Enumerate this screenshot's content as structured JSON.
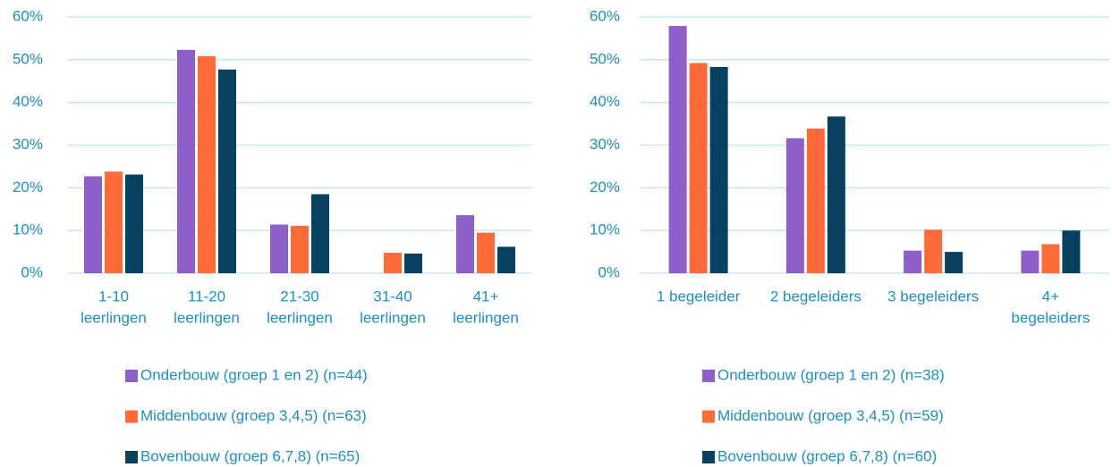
{
  "chart_data": [
    {
      "type": "bar",
      "categories": [
        [
          "1-10",
          "leerlingen"
        ],
        [
          "11-20",
          "leerlingen"
        ],
        [
          "21-30",
          "leerlingen"
        ],
        [
          "31-40",
          "leerlingen"
        ],
        [
          "41+",
          "leerlingen"
        ]
      ],
      "series": [
        {
          "name": "Onderbouw (groep 1 en 2) (n=44)",
          "color": "#8e5fc9",
          "values": [
            22.7,
            52.3,
            11.4,
            0,
            13.6
          ]
        },
        {
          "name": "Middenbouw (groep 3,4,5) (n=63)",
          "color": "#ff6b38",
          "values": [
            23.8,
            50.8,
            11.1,
            4.8,
            9.5
          ]
        },
        {
          "name": "Bovenbouw (groep 6,7,8) (n=65)",
          "color": "#08405f",
          "values": [
            23.1,
            47.7,
            18.5,
            4.6,
            6.2
          ]
        }
      ],
      "ylim": [
        0,
        60
      ],
      "yticks": [
        {
          "value": 0,
          "label": "0%"
        },
        {
          "value": 10,
          "label": "10%"
        },
        {
          "value": 20,
          "label": "20%"
        },
        {
          "value": 30,
          "label": "30%"
        },
        {
          "value": 40,
          "label": "40%"
        },
        {
          "value": 50,
          "label": "50%"
        },
        {
          "value": 60,
          "label": "60%"
        }
      ],
      "grid": true,
      "legend": "bottom"
    },
    {
      "type": "bar",
      "categories": [
        [
          "1 begeleider"
        ],
        [
          "2 begeleiders"
        ],
        [
          "3 begeleiders"
        ],
        [
          "4+",
          "begeleiders"
        ]
      ],
      "series": [
        {
          "name": "Onderbouw (groep 1 en 2) (n=38)",
          "color": "#8e5fc9",
          "values": [
            57.9,
            31.6,
            5.3,
            5.3
          ]
        },
        {
          "name": "Middenbouw (groep 3,4,5) (n=59)",
          "color": "#ff6b38",
          "values": [
            49.2,
            33.9,
            10.2,
            6.8
          ]
        },
        {
          "name": "Bovenbouw (groep 6,7,8) (n=60)",
          "color": "#08405f",
          "values": [
            48.3,
            36.7,
            5.0,
            10.0
          ]
        }
      ],
      "ylim": [
        0,
        60
      ],
      "yticks": [
        {
          "value": 0,
          "label": "0%"
        },
        {
          "value": 10,
          "label": "10%"
        },
        {
          "value": 20,
          "label": "20%"
        },
        {
          "value": 30,
          "label": "30%"
        },
        {
          "value": 40,
          "label": "40%"
        },
        {
          "value": 50,
          "label": "50%"
        },
        {
          "value": 60,
          "label": "60%"
        }
      ],
      "grid": true,
      "legend": "bottom"
    }
  ]
}
